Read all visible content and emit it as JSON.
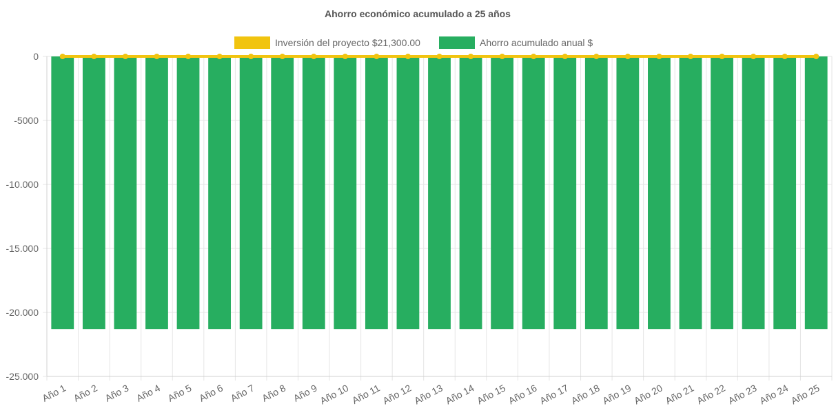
{
  "chart_data": {
    "type": "bar",
    "title": "Ahorro económico acumulado a 25 años",
    "xlabel": "",
    "ylabel": "",
    "categories": [
      "Año 1",
      "Año 2",
      "Año 3",
      "Año 4",
      "Año 5",
      "Año 6",
      "Año 7",
      "Año 8",
      "Año 9",
      "Año 10",
      "Año 11",
      "Año 12",
      "Año 13",
      "Año 14",
      "Año 15",
      "Año 16",
      "Año 17",
      "Año 18",
      "Año 19",
      "Año 20",
      "Año 21",
      "Año 22",
      "Año 23",
      "Año 24",
      "Año 25"
    ],
    "ylim": [
      -25000,
      0
    ],
    "yticks": [
      0,
      -5000,
      -10000,
      -15000,
      -20000,
      -25000
    ],
    "ytick_labels": [
      "0",
      "-5000",
      "-10.000",
      "-15.000",
      "-20.000",
      "-25.000"
    ],
    "grid": true,
    "legend_position": "top",
    "series": [
      {
        "name": "Inversión del proyecto $21,300.00",
        "type": "line",
        "color": "#f1c40f",
        "values": [
          0,
          0,
          0,
          0,
          0,
          0,
          0,
          0,
          0,
          0,
          0,
          0,
          0,
          0,
          0,
          0,
          0,
          0,
          0,
          0,
          0,
          0,
          0,
          0,
          0
        ]
      },
      {
        "name": "Ahorro acumulado anual $",
        "type": "bar",
        "color": "#27ae60",
        "values": [
          -21300,
          -21300,
          -21300,
          -21300,
          -21300,
          -21300,
          -21300,
          -21300,
          -21300,
          -21300,
          -21300,
          -21300,
          -21300,
          -21300,
          -21300,
          -21300,
          -21300,
          -21300,
          -21300,
          -21300,
          -21300,
          -21300,
          -21300,
          -21300,
          -21300
        ]
      }
    ]
  }
}
